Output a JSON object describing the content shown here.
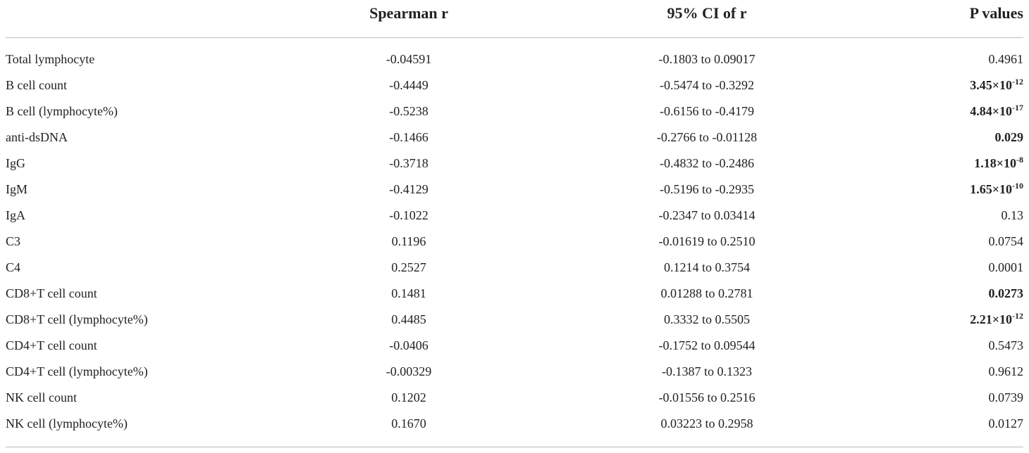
{
  "table": {
    "headers": [
      "",
      "Spearman r",
      "95% CI of r",
      "P values"
    ],
    "rows": [
      {
        "label": "Total lymphocyte",
        "spearman_r": "-0.04591",
        "ci": "-0.1803 to 0.09017",
        "p_mantissa": "0.4961",
        "p_exp": "",
        "p_bold": false
      },
      {
        "label": "B cell count",
        "spearman_r": "-0.4449",
        "ci": "-0.5474 to -0.3292",
        "p_mantissa": "3.45×10",
        "p_exp": "-12",
        "p_bold": true
      },
      {
        "label": "B cell (lymphocyte%)",
        "spearman_r": "-0.5238",
        "ci": "-0.6156 to -0.4179",
        "p_mantissa": "4.84×10",
        "p_exp": "-17",
        "p_bold": true
      },
      {
        "label": "anti-dsDNA",
        "spearman_r": "-0.1466",
        "ci": "-0.2766 to -0.01128",
        "p_mantissa": "0.029",
        "p_exp": "",
        "p_bold": true
      },
      {
        "label": "IgG",
        "spearman_r": "-0.3718",
        "ci": "-0.4832 to -0.2486",
        "p_mantissa": "1.18×10",
        "p_exp": "-8",
        "p_bold": true
      },
      {
        "label": "IgM",
        "spearman_r": "-0.4129",
        "ci": "-0.5196 to -0.2935",
        "p_mantissa": "1.65×10",
        "p_exp": "-10",
        "p_bold": true
      },
      {
        "label": "IgA",
        "spearman_r": "-0.1022",
        "ci": "-0.2347 to 0.03414",
        "p_mantissa": "0.13",
        "p_exp": "",
        "p_bold": false
      },
      {
        "label": "C3",
        "spearman_r": "0.1196",
        "ci": "-0.01619 to 0.2510",
        "p_mantissa": "0.0754",
        "p_exp": "",
        "p_bold": false
      },
      {
        "label": "C4",
        "spearman_r": "0.2527",
        "ci": "0.1214 to 0.3754",
        "p_mantissa": "0.0001",
        "p_exp": "",
        "p_bold": false
      },
      {
        "label": "CD8+T cell count",
        "spearman_r": "0.1481",
        "ci": "0.01288 to 0.2781",
        "p_mantissa": "0.0273",
        "p_exp": "",
        "p_bold": true
      },
      {
        "label": "CD8+T cell (lymphocyte%)",
        "spearman_r": "0.4485",
        "ci": "0.3332 to 0.5505",
        "p_mantissa": "2.21×10",
        "p_exp": "-12",
        "p_bold": true
      },
      {
        "label": "CD4+T cell count",
        "spearman_r": "-0.0406",
        "ci": "-0.1752 to 0.09544",
        "p_mantissa": "0.5473",
        "p_exp": "",
        "p_bold": false
      },
      {
        "label": "CD4+T cell (lymphocyte%)",
        "spearman_r": "-0.00329",
        "ci": "-0.1387 to 0.1323",
        "p_mantissa": "0.9612",
        "p_exp": "",
        "p_bold": false
      },
      {
        "label": "NK cell count",
        "spearman_r": "0.1202",
        "ci": "-0.01556 to 0.2516",
        "p_mantissa": "0.0739",
        "p_exp": "",
        "p_bold": false
      },
      {
        "label": "NK cell (lymphocyte%)",
        "spearman_r": "0.1670",
        "ci": "0.03223 to 0.2958",
        "p_mantissa": "0.0127",
        "p_exp": "",
        "p_bold": false
      }
    ]
  }
}
